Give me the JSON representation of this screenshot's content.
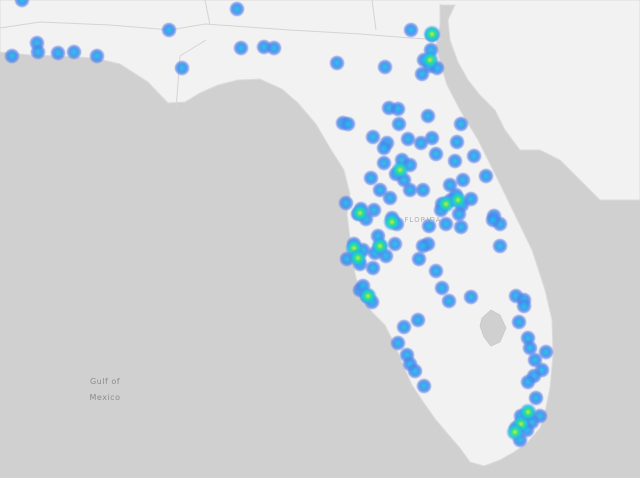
{
  "map": {
    "water_label_line1": "Gulf of",
    "water_label_line2": "Mexico",
    "state_label": "FLORIDA",
    "colors": {
      "water": "#d0d0d0",
      "land": "#f2f2f2",
      "border": "#d8d8d8",
      "heat_low": "#5b7fe6",
      "heat_mid": "#19c3e8",
      "heat_high": "#2fe08a",
      "heat_peak": "#c8f040"
    }
  },
  "heatmap_layer": {
    "legend": "none",
    "hotspot_count_visible": 170
  }
}
